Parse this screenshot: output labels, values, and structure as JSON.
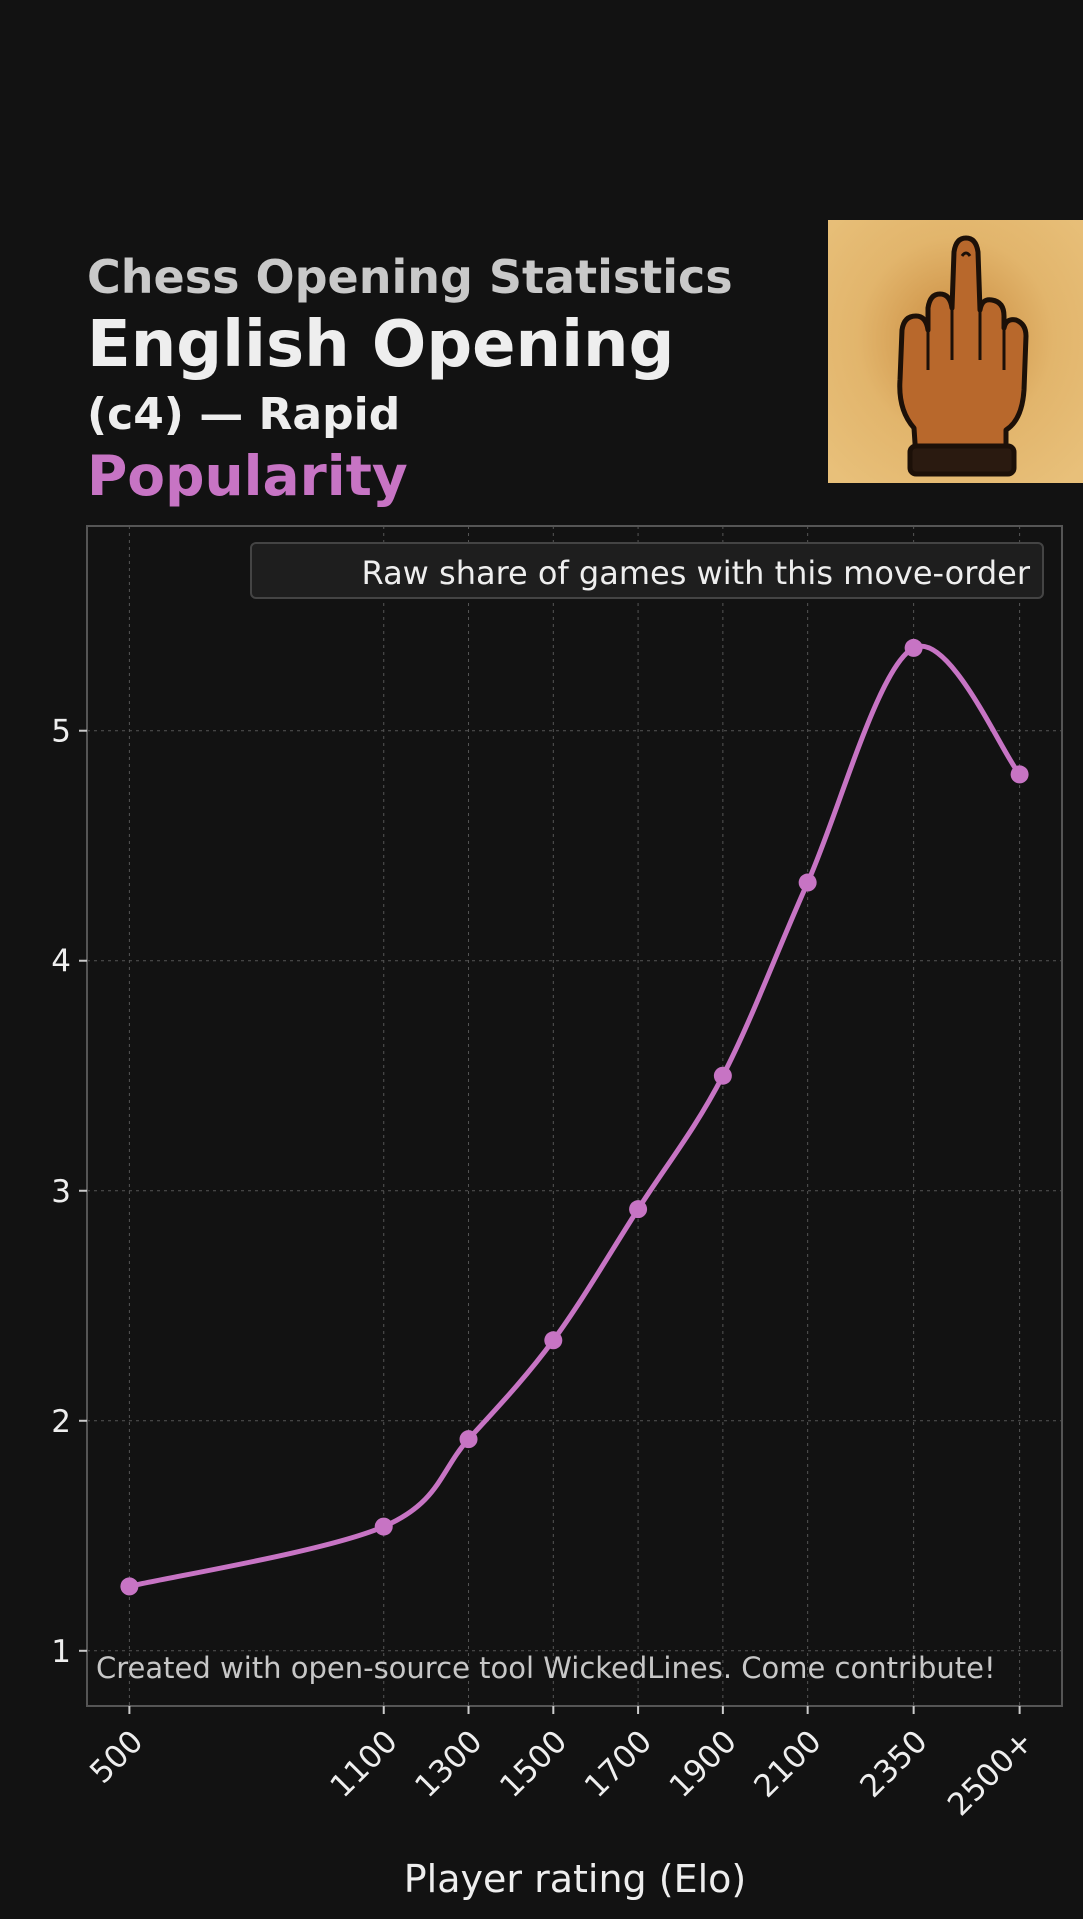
{
  "header": {
    "suptitle": "Chess Opening Statistics",
    "opening_name": "English Opening",
    "variant": "(c4) — Rapid",
    "metric": "Popularity"
  },
  "logo": {
    "icon": "middle-finger-hand-icon"
  },
  "legend": {
    "label": "Raw share of games with this move-order"
  },
  "credit": "Created with open-source tool WickedLines. Come contribute!",
  "colors": {
    "background": "#121212",
    "series": "#c774c4",
    "grid": "#555555",
    "frame": "#555555",
    "text": "#eeeeee"
  },
  "chart_data": {
    "type": "line",
    "xlabel": "Player rating (Elo)",
    "ylabel": "",
    "categories": [
      "500",
      "1100",
      "1300",
      "1500",
      "1700",
      "1900",
      "2100",
      "2350",
      "2500+"
    ],
    "x": [
      500,
      1100,
      1300,
      1500,
      1700,
      1900,
      2100,
      2350,
      2600
    ],
    "xlim": [
      400,
      2700
    ],
    "ylim": [
      0.76,
      5.89
    ],
    "yticks": [
      1,
      2,
      3,
      4,
      5
    ],
    "grid": true,
    "legend_position": "top-right",
    "series": [
      {
        "name": "Raw share of games with this move-order",
        "values": [
          1.28,
          1.54,
          1.92,
          2.35,
          2.92,
          3.5,
          4.34,
          5.36,
          4.81
        ]
      }
    ]
  }
}
